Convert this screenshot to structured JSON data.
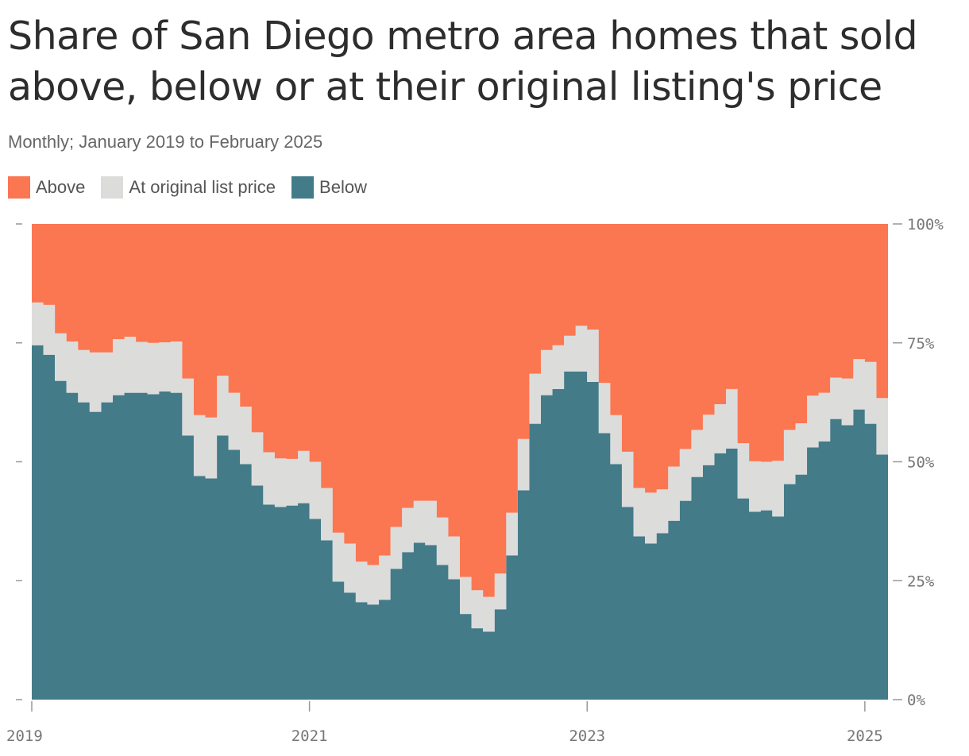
{
  "chart_data": {
    "type": "area",
    "title": "Share of San Diego metro area homes that sold above, below or at their original listing's price",
    "subtitle": "Monthly; January 2019 to February 2025",
    "stacked": true,
    "step": true,
    "x_start": "2019-01",
    "x_end": "2025-02",
    "x_ticks": [
      "2019",
      "2021",
      "2023",
      "2025"
    ],
    "y_ticks": [
      "0%",
      "25%",
      "50%",
      "75%",
      "100%"
    ],
    "ylim": [
      0,
      100
    ],
    "y_axis_side": "right",
    "grid": false,
    "legend_position": "top-left",
    "x": [
      "2019-01",
      "2019-02",
      "2019-03",
      "2019-04",
      "2019-05",
      "2019-06",
      "2019-07",
      "2019-08",
      "2019-09",
      "2019-10",
      "2019-11",
      "2019-12",
      "2020-01",
      "2020-02",
      "2020-03",
      "2020-04",
      "2020-05",
      "2020-06",
      "2020-07",
      "2020-08",
      "2020-09",
      "2020-10",
      "2020-11",
      "2020-12",
      "2021-01",
      "2021-02",
      "2021-03",
      "2021-04",
      "2021-05",
      "2021-06",
      "2021-07",
      "2021-08",
      "2021-09",
      "2021-10",
      "2021-11",
      "2021-12",
      "2022-01",
      "2022-02",
      "2022-03",
      "2022-04",
      "2022-05",
      "2022-06",
      "2022-07",
      "2022-08",
      "2022-09",
      "2022-10",
      "2022-11",
      "2022-12",
      "2023-01",
      "2023-02",
      "2023-03",
      "2023-04",
      "2023-05",
      "2023-06",
      "2023-07",
      "2023-08",
      "2023-09",
      "2023-10",
      "2023-11",
      "2023-12",
      "2024-01",
      "2024-02",
      "2024-03",
      "2024-04",
      "2024-05",
      "2024-06",
      "2024-07",
      "2024-08",
      "2024-09",
      "2024-10",
      "2024-11",
      "2024-12",
      "2025-01",
      "2025-02"
    ],
    "series": [
      {
        "name": "Below",
        "color": "#437b89",
        "values": [
          74.5,
          72.5,
          67,
          64.5,
          62.5,
          60.5,
          62.5,
          64,
          64.5,
          64.5,
          64.2,
          64.8,
          64.5,
          55.5,
          47,
          46.5,
          55.5,
          52.5,
          49.5,
          45,
          41,
          40.5,
          40.8,
          41.3,
          38,
          33.5,
          24.8,
          22.5,
          20.5,
          20,
          21,
          27.5,
          31,
          33,
          32.5,
          28.3,
          25.3,
          18,
          15,
          14.3,
          19,
          30.3,
          44,
          58,
          64,
          65.3,
          69,
          69,
          66.8,
          56,
          49.5,
          40.5,
          34.3,
          32.8,
          35,
          37.6,
          41.8,
          46.8,
          49.3,
          51.8,
          52.8,
          42.3,
          39.5,
          39.8,
          38.5,
          45.3,
          47.3,
          53,
          54.3,
          59,
          57.7,
          61,
          58,
          51.5
        ]
      },
      {
        "name": "At original list price",
        "color": "#dcdcdb",
        "values": [
          9,
          10.5,
          10,
          10.8,
          11,
          12.5,
          10.5,
          11.8,
          11.8,
          10.7,
          10.8,
          10.3,
          10.8,
          12,
          12.8,
          12.8,
          12.6,
          12,
          12.1,
          11.2,
          11,
          10.2,
          9.8,
          11,
          12,
          11,
          10.3,
          10.3,
          8.5,
          8.3,
          9.3,
          8.8,
          9.3,
          8.8,
          9.3,
          10,
          9,
          7.8,
          8,
          7.3,
          7.5,
          9,
          10.8,
          10.5,
          9.5,
          9.2,
          7.5,
          9.6,
          11,
          10.6,
          10.3,
          11.6,
          10.2,
          10.7,
          9.2,
          11.4,
          10.9,
          9.9,
          10.6,
          10.3,
          12.5,
          11.6,
          10.6,
          10.2,
          11.7,
          11.4,
          10.8,
          10.9,
          10.2,
          8.7,
          9.8,
          10.6,
          13,
          11.9
        ]
      },
      {
        "name": "Above",
        "color": "#fa7752",
        "values": [
          16.5,
          17,
          23,
          24.7,
          26.5,
          27,
          27,
          24.2,
          23.7,
          24.8,
          25,
          24.9,
          24.7,
          32.5,
          40.2,
          40.7,
          31.9,
          35.5,
          38.4,
          43.8,
          48,
          49.3,
          49.4,
          47.7,
          50,
          55.5,
          64.9,
          67.2,
          71,
          71.7,
          69.7,
          63.7,
          59.7,
          58.2,
          58.2,
          61.7,
          65.7,
          74.2,
          77,
          78.4,
          73.5,
          60.7,
          45.2,
          31.5,
          26.5,
          25.5,
          23.5,
          21.4,
          22.2,
          33.4,
          40.2,
          47.9,
          55.5,
          56.5,
          55.8,
          51,
          47.3,
          43.3,
          40.1,
          37.9,
          34.7,
          46.1,
          49.9,
          50,
          49.8,
          43.3,
          41.9,
          36.1,
          35.5,
          32.3,
          32.5,
          28.4,
          29,
          36.6
        ]
      }
    ]
  },
  "legend": [
    {
      "label": "Above",
      "color": "#fa7752"
    },
    {
      "label": "At original list price",
      "color": "#dcdcdb"
    },
    {
      "label": "Below",
      "color": "#437b89"
    }
  ]
}
